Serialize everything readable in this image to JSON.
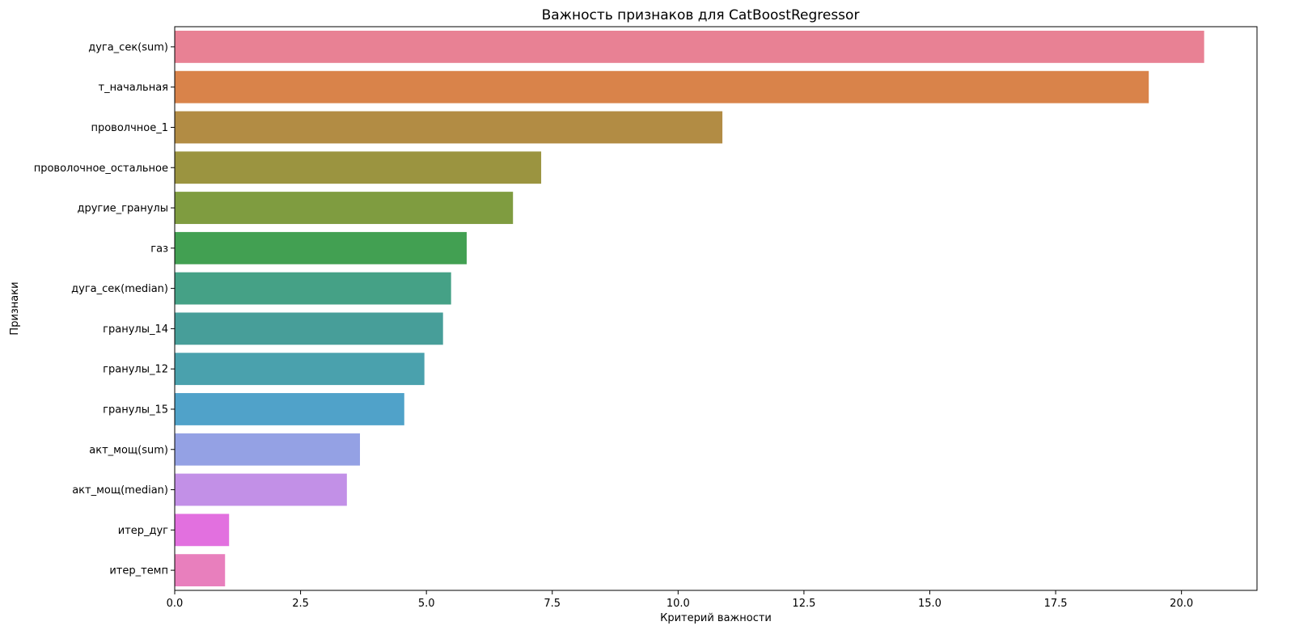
{
  "chart_data": {
    "type": "bar",
    "orientation": "horizontal",
    "title": "Важность признаков для CatBoostRegressor",
    "xlabel": "Критерий важности",
    "ylabel": "Признаки",
    "xlim": [
      0,
      21.5
    ],
    "xticks": [
      0.0,
      2.5,
      5.0,
      7.5,
      10.0,
      12.5,
      15.0,
      17.5,
      20.0
    ],
    "xtick_labels": [
      "0.0",
      "2.5",
      "5.0",
      "7.5",
      "10.0",
      "12.5",
      "15.0",
      "17.5",
      "20.0"
    ],
    "grid": false,
    "legend": "none",
    "categories": [
      "дуга_сек(sum)",
      "т_начальная",
      "проволчное_1",
      "проволочное_остальное",
      "другие_гранулы",
      "газ",
      "дуга_сек(median)",
      "гранулы_14",
      "гранулы_12",
      "гранулы_15",
      "акт_мощ(sum)",
      "акт_мощ(median)",
      "итер_дуг",
      "итер_темп"
    ],
    "values": [
      20.45,
      19.35,
      10.88,
      7.28,
      6.72,
      5.8,
      5.49,
      5.33,
      4.96,
      4.56,
      3.68,
      3.42,
      1.08,
      1.0
    ],
    "colors": [
      "#e88194",
      "#d9834a",
      "#b28c44",
      "#9b9440",
      "#7f9c40",
      "#42a052",
      "#45a186",
      "#479e99",
      "#4aa1ad",
      "#50a2c9",
      "#94a1e4",
      "#c290e7",
      "#e270df",
      "#e87fbd"
    ]
  }
}
